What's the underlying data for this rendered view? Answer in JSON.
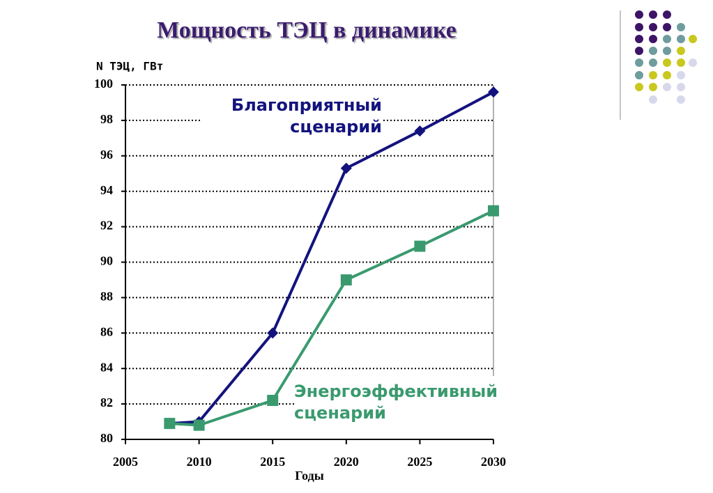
{
  "chart_data": {
    "type": "line",
    "title": "Мощность ТЭЦ в динамике",
    "y_label": "N ТЭЦ, ГВт",
    "x_label": "Годы",
    "x": [
      2008,
      2010,
      2015,
      2020,
      2025,
      2030
    ],
    "series": [
      {
        "name": "Благоприятный сценарий",
        "color": "#13137e",
        "marker": "diamond",
        "values": [
          80.9,
          81.0,
          86.0,
          95.3,
          97.4,
          99.6
        ]
      },
      {
        "name": "Энергоэффективный сценарий",
        "color": "#3a9a6e",
        "marker": "square",
        "values": [
          80.9,
          80.8,
          82.2,
          89.0,
          90.9,
          92.9
        ]
      }
    ],
    "xlim": [
      2005,
      2030
    ],
    "xticks": [
      2005,
      2010,
      2015,
      2020,
      2025,
      2030
    ],
    "ylim": [
      80,
      100
    ],
    "yticks": [
      80,
      82,
      84,
      86,
      88,
      90,
      92,
      94,
      96,
      98,
      100
    ],
    "grid": true
  }
}
